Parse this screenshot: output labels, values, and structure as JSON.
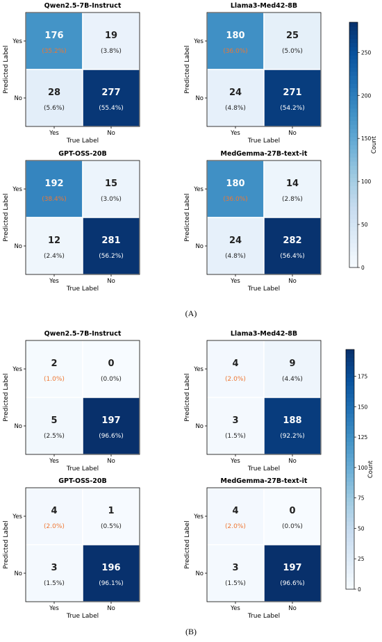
{
  "panels": [
    {
      "label": "(A)",
      "colorbar": {
        "label": "Count",
        "min": 0,
        "max": 285,
        "ticks": [
          0,
          50,
          100,
          150,
          200,
          250
        ]
      },
      "chart_data": [
        {
          "type": "heatmap",
          "title": "Qwen2.5-7B-Instruct",
          "xlabel": "True Label",
          "ylabel": "Predicted Label",
          "x_categories": [
            "Yes",
            "No"
          ],
          "y_categories": [
            "Yes",
            "No"
          ],
          "values": [
            [
              176,
              19
            ],
            [
              28,
              277
            ]
          ],
          "percent_labels": [
            [
              "(35.2%)",
              "(3.8%)"
            ],
            [
              "(5.6%)",
              "(55.4%)"
            ]
          ]
        },
        {
          "type": "heatmap",
          "title": "Llama3-Med42-8B",
          "xlabel": "True Label",
          "ylabel": "Predicted Label",
          "x_categories": [
            "Yes",
            "No"
          ],
          "y_categories": [
            "Yes",
            "No"
          ],
          "values": [
            [
              180,
              25
            ],
            [
              24,
              271
            ]
          ],
          "percent_labels": [
            [
              "(36.0%)",
              "(5.0%)"
            ],
            [
              "(4.8%)",
              "(54.2%)"
            ]
          ]
        },
        {
          "type": "heatmap",
          "title": "GPT-OSS-20B",
          "xlabel": "True Label",
          "ylabel": "Predicted Label",
          "x_categories": [
            "Yes",
            "No"
          ],
          "y_categories": [
            "Yes",
            "No"
          ],
          "values": [
            [
              192,
              15
            ],
            [
              12,
              281
            ]
          ],
          "percent_labels": [
            [
              "(38.4%)",
              "(3.0%)"
            ],
            [
              "(2.4%)",
              "(56.2%)"
            ]
          ]
        },
        {
          "type": "heatmap",
          "title": "MedGemma-27B-text-it",
          "xlabel": "True Label",
          "ylabel": "Predicted Label",
          "x_categories": [
            "Yes",
            "No"
          ],
          "y_categories": [
            "Yes",
            "No"
          ],
          "values": [
            [
              180,
              14
            ],
            [
              24,
              282
            ]
          ],
          "percent_labels": [
            [
              "(36.0%)",
              "(2.8%)"
            ],
            [
              "(4.8%)",
              "(56.4%)"
            ]
          ]
        }
      ]
    },
    {
      "label": "(B)",
      "colorbar": {
        "label": "Count",
        "min": 0,
        "max": 197,
        "ticks": [
          0,
          25,
          50,
          75,
          100,
          125,
          150,
          175
        ]
      },
      "chart_data": [
        {
          "type": "heatmap",
          "title": "Qwen2.5-7B-Instruct",
          "xlabel": "True Label",
          "ylabel": "Predicted Label",
          "x_categories": [
            "Yes",
            "No"
          ],
          "y_categories": [
            "Yes",
            "No"
          ],
          "values": [
            [
              2,
              0
            ],
            [
              5,
              197
            ]
          ],
          "percent_labels": [
            [
              "(1.0%)",
              "(0.0%)"
            ],
            [
              "(2.5%)",
              "(96.6%)"
            ]
          ]
        },
        {
          "type": "heatmap",
          "title": "Llama3-Med42-8B",
          "xlabel": "True Label",
          "ylabel": "Predicted Label",
          "x_categories": [
            "Yes",
            "No"
          ],
          "y_categories": [
            "Yes",
            "No"
          ],
          "values": [
            [
              4,
              9
            ],
            [
              3,
              188
            ]
          ],
          "percent_labels": [
            [
              "(2.0%)",
              "(4.4%)"
            ],
            [
              "(1.5%)",
              "(92.2%)"
            ]
          ]
        },
        {
          "type": "heatmap",
          "title": "GPT-OSS-20B",
          "xlabel": "True Label",
          "ylabel": "Predicted Label",
          "x_categories": [
            "Yes",
            "No"
          ],
          "y_categories": [
            "Yes",
            "No"
          ],
          "values": [
            [
              4,
              1
            ],
            [
              3,
              196
            ]
          ],
          "percent_labels": [
            [
              "(2.0%)",
              "(0.5%)"
            ],
            [
              "(1.5%)",
              "(96.1%)"
            ]
          ]
        },
        {
          "type": "heatmap",
          "title": "MedGemma-27B-text-it",
          "xlabel": "True Label",
          "ylabel": "Predicted Label",
          "x_categories": [
            "Yes",
            "No"
          ],
          "y_categories": [
            "Yes",
            "No"
          ],
          "values": [
            [
              4,
              0
            ],
            [
              3,
              197
            ]
          ],
          "percent_labels": [
            [
              "(2.0%)",
              "(0.0%)"
            ],
            [
              "(1.5%)",
              "(96.6%)"
            ]
          ]
        }
      ]
    }
  ],
  "colors": {
    "percent_highlight": "#ee7733",
    "colormap": [
      "#f7fbff",
      "#deebf7",
      "#c6dbef",
      "#9ecae1",
      "#6baed6",
      "#4292c6",
      "#2171b5",
      "#08519c",
      "#08306b"
    ]
  }
}
